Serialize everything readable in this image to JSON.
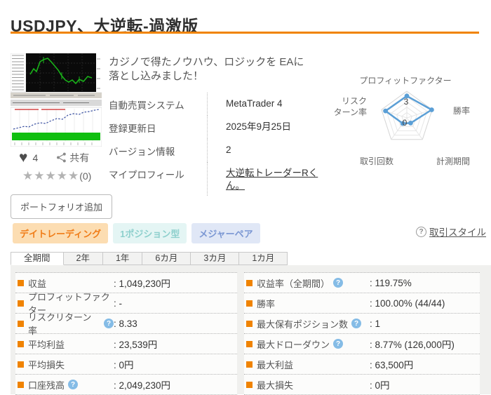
{
  "page": {
    "title": "USDJPY、大逆転-過激版"
  },
  "product": {
    "description_line1": "カジノで得たノウハウ、ロジックを EAに",
    "description_line2": "落とし込みました！",
    "specs": [
      {
        "label": "自動売買システム",
        "value": "MetaTrader 4"
      },
      {
        "label": "登録更新日",
        "value": "2025年9月25日"
      },
      {
        "label": "バージョン情報",
        "value": "2"
      },
      {
        "label": "マイプロフィール",
        "value": "大逆転トレーダーRくん。"
      }
    ]
  },
  "radar": {
    "axes": {
      "top": "プロフィットファクター",
      "right": "勝率",
      "bottom_right": "計測期間",
      "bottom_left": "取引回数",
      "left_line1": "リスク",
      "left_line2": "ターン率"
    },
    "scale_max_label": "3",
    "scale_min_label": "0",
    "values": [
      4.1,
      4.9,
      1.2,
      1.3,
      4.2
    ],
    "max": 5,
    "color": "#5b9fd6"
  },
  "social": {
    "like_count": "4",
    "share_label": "共有",
    "stars": "★★★★★",
    "rating_count": "(0)",
    "portfolio_button": "ポートフォリオ追加"
  },
  "icons": {
    "help_glyph": "?",
    "heart_glyph": "♥"
  },
  "tags": [
    {
      "label": "デイトレーディング"
    },
    {
      "label": "1ポジション型"
    },
    {
      "label": "メジャーペア"
    }
  ],
  "trade_style_label": "取引スタイル",
  "tabs": [
    {
      "label": "全期間"
    },
    {
      "label": "2年"
    },
    {
      "label": "1年"
    },
    {
      "label": "6カ月"
    },
    {
      "label": "3カ月"
    },
    {
      "label": "1カ月"
    }
  ],
  "stats": {
    "left": [
      {
        "label": "収益",
        "value": ": 1,049,230円"
      },
      {
        "label": "プロフィットファクター",
        "value": ": -"
      },
      {
        "label": "リスクリターン率",
        "value": ": 8.33"
      },
      {
        "label": "平均利益",
        "value": ": 23,539円"
      },
      {
        "label": "平均損失",
        "value": ": 0円"
      },
      {
        "label": "口座残高",
        "value": ": 2,049,230円"
      }
    ],
    "right": [
      {
        "label": "収益率（全期間）",
        "value": ": 119.75%"
      },
      {
        "label": "勝率",
        "value": ": 100.00% (44/44)"
      },
      {
        "label": "最大保有ポジション数",
        "value": ": 1"
      },
      {
        "label": "最大ドローダウン",
        "value": ": 8.77% (126,000円)"
      },
      {
        "label": "最大利益",
        "value": ": 63,500円"
      },
      {
        "label": "最大損失",
        "value": ": 0円"
      }
    ]
  }
}
